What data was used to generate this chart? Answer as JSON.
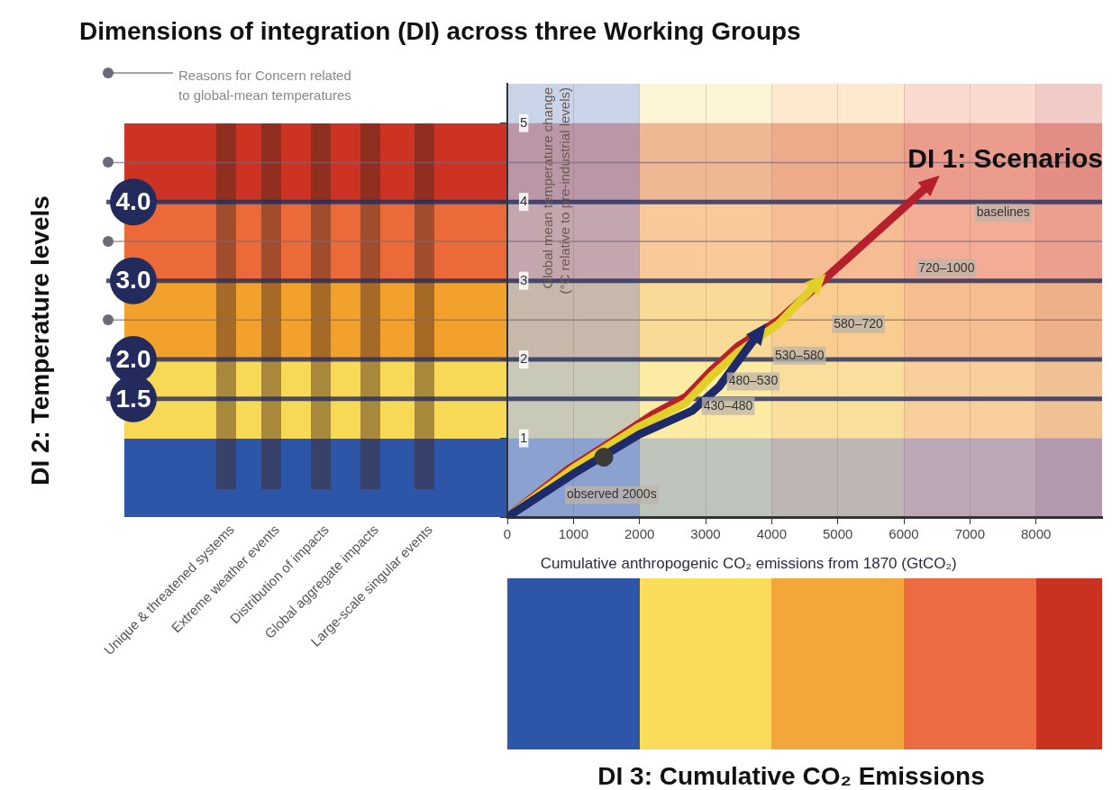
{
  "chart_data": {
    "type": "line",
    "title": "Dimensions of integration (DI) across three Working Groups",
    "xlabel": "Cumulative anthropogenic CO₂ emissions from 1870 (GtCO₂)",
    "ylabel": "Global mean temperature change (°C relative to pre-industrial levels)",
    "xlim": [
      0,
      9000
    ],
    "xticks": [
      0,
      1000,
      2000,
      3000,
      4000,
      5000,
      6000,
      7000,
      8000
    ],
    "ylim": [
      0,
      5.5
    ],
    "yticks": [
      {
        "value": 0,
        "label": null
      },
      1,
      2,
      3,
      4,
      5
    ],
    "grid": "x",
    "legend": false,
    "marker": "none",
    "series": [
      {
        "color": "#1f2a6b",
        "x": [
          0,
          1000,
          2000,
          2800,
          3200,
          3800
        ],
        "values": [
          0,
          0.55,
          1.05,
          1.35,
          1.65,
          2.33
        ]
      },
      {
        "color": "#e3cf2a",
        "x": [
          0,
          1000,
          2000,
          2700,
          3100,
          3500,
          4100,
          4690
        ],
        "values": [
          0,
          0.62,
          1.15,
          1.45,
          1.8,
          2.1,
          2.45,
          2.97
        ]
      },
      {
        "color": "#b5202a",
        "x": [
          0,
          930,
          1570,
          2200,
          2710,
          3100,
          3480,
          4110,
          6400
        ],
        "values": [
          0,
          0.61,
          0.95,
          1.3,
          1.53,
          1.87,
          2.16,
          2.5,
          4.23
        ]
      },
      {
        "type": "scatter",
        "marker": "circle",
        "color": "#3a3a3a",
        "x": [
          1460
        ],
        "values": [
          0.76
        ]
      }
    ],
    "bands": [
      {
        "axis": "y",
        "from": 0,
        "to": 1,
        "color": "#2d56a8"
      },
      {
        "axis": "y",
        "from": 1,
        "to": 2,
        "color": "#f7d955"
      },
      {
        "axis": "y",
        "from": 2,
        "to": 3,
        "color": "#f2a22c"
      },
      {
        "axis": "y",
        "from": 3,
        "to": 4,
        "color": "#ec6a3a"
      },
      {
        "axis": "y",
        "from": 4,
        "to": 5,
        "color": "#cc3322"
      },
      {
        "axis": "x",
        "from": 0,
        "to": 2000,
        "color": "#2d55a8"
      },
      {
        "axis": "x",
        "from": 2000,
        "to": 4000,
        "color": "#f9dc5a"
      },
      {
        "axis": "x",
        "from": 4000,
        "to": 6000,
        "color": "#f3a63a"
      },
      {
        "axis": "x",
        "from": 6000,
        "to": 8000,
        "color": "#ec6b40"
      },
      {
        "axis": "x",
        "from": 8000,
        "to": 9000,
        "color": "#c8321f"
      }
    ],
    "ref_lines": [
      {
        "axis": "y",
        "value": 1.5,
        "label": "1.5",
        "color": "#232a5c"
      },
      {
        "axis": "y",
        "value": 2,
        "label": "2.0",
        "color": "#232a5c"
      },
      {
        "axis": "y",
        "value": 2.5,
        "color": "#7a6a7a"
      },
      {
        "axis": "y",
        "value": 3,
        "label": "3.0",
        "color": "#232a5c"
      },
      {
        "axis": "y",
        "value": 3.5,
        "color": "#7a6a7a"
      },
      {
        "axis": "y",
        "value": 4,
        "label": "4.0",
        "color": "#232a5c"
      },
      {
        "axis": "y",
        "value": 4.5,
        "color": "#7a6a7a"
      }
    ],
    "annotations": [
      "DI 1: Scenarios",
      "DI 2: Temperature levels",
      "DI 3: Cumulative CO₂ Emissions",
      "Reasons for Concern related to global-mean temperatures",
      "Unique & threatened systems",
      "Extreme weather events",
      "Distribution of impacts",
      "Global aggregate impacts",
      "Large-scale singular events",
      "baselines",
      "720–1000",
      "580–720",
      "530–580",
      "480–530",
      "430–480",
      "observed 2000s"
    ]
  }
}
